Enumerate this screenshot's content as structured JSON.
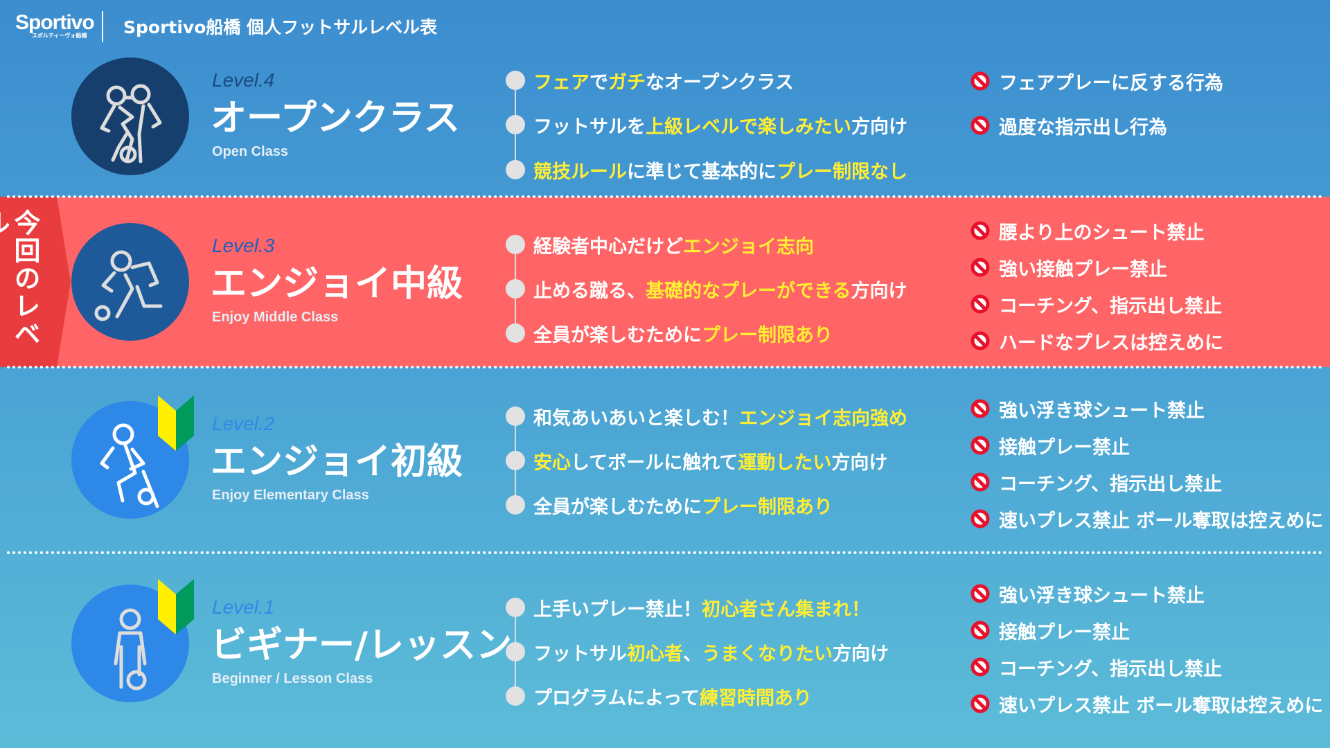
{
  "header": {
    "logo_text": "Sportivo",
    "logo_sub": "スポルティーヴォ船橋",
    "title": "Sportivo船橋 個人フットサルレベル表"
  },
  "current_tab": "今回のレベル",
  "colors": {
    "highlight": "#ffee33",
    "current_band": "#ff6566",
    "tab": "#e93c3e",
    "prohibit": "#e8102a"
  },
  "levels": [
    {
      "level": "Level.4",
      "name": "オープンクラス",
      "sub": "Open Class",
      "icon": "two-players-icon",
      "circle": "#163f6e",
      "label_color": "#1b4a82",
      "beginner_mark": false,
      "bullets": [
        [
          {
            "t": "フェア",
            "h": 1
          },
          {
            "t": "で"
          },
          {
            "t": "ガチ",
            "h": 1
          },
          {
            "t": "なオープンクラス"
          }
        ],
        [
          {
            "t": "フットサルを"
          },
          {
            "t": "上級レベルで楽しみたい",
            "h": 1
          },
          {
            "t": "方向け"
          }
        ],
        [
          {
            "t": "競技ルール",
            "h": 1
          },
          {
            "t": "に準じて基本的に"
          },
          {
            "t": "プレー制限なし",
            "h": 1
          }
        ]
      ],
      "rules": [
        "フェアプレーに反する行為",
        "過度な指示出し行為"
      ]
    },
    {
      "level": "Level.3",
      "name": "エンジョイ中級",
      "sub": "Enjoy Middle Class",
      "icon": "kicking-player-icon",
      "circle": "#1e5a9a",
      "label_color": "#1e5fc0",
      "beginner_mark": false,
      "current": true,
      "bullets": [
        [
          {
            "t": "経験者中心だけど"
          },
          {
            "t": "エンジョイ志向",
            "h": 1
          }
        ],
        [
          {
            "t": "止める蹴る、"
          },
          {
            "t": "基礎的なプレーができる",
            "h": 1
          },
          {
            "t": "方向け"
          }
        ],
        [
          {
            "t": "全員が楽しむために"
          },
          {
            "t": "プレー制限あり",
            "h": 1
          }
        ]
      ],
      "rules": [
        "腰より上のシュート禁止",
        "強い接触プレー禁止",
        "コーチング、指示出し禁止",
        "ハードなプレスは控えめに"
      ]
    },
    {
      "level": "Level.2",
      "name": "エンジョイ初級",
      "sub": "Enjoy Elementary Class",
      "icon": "dribbling-player-icon",
      "circle": "#2e88e8",
      "label_color": "#2f8ae6",
      "beginner_mark": true,
      "bullets": [
        [
          {
            "t": "和気あいあいと楽しむ！"
          },
          {
            "t": "エンジョイ志向強め",
            "h": 1
          }
        ],
        [
          {
            "t": "安心",
            "h": 1
          },
          {
            "t": "してボールに触れて"
          },
          {
            "t": "運動したい",
            "h": 1
          },
          {
            "t": "方向け"
          }
        ],
        [
          {
            "t": "全員が楽しむために"
          },
          {
            "t": "プレー制限あり",
            "h": 1
          }
        ]
      ],
      "rules": [
        "強い浮き球シュート禁止",
        "接触プレー禁止",
        "コーチング、指示出し禁止",
        "速いプレス禁止 ボール奪取は控えめに"
      ]
    },
    {
      "level": "Level.1",
      "name": "ビギナー/レッスン",
      "sub": "Beginner / Lesson Class",
      "icon": "standing-player-icon",
      "circle": "#2e88e8",
      "label_color": "#2f8ae6",
      "beginner_mark": true,
      "bullets": [
        [
          {
            "t": "上手いプレー禁止！"
          },
          {
            "t": "初心者さん集まれ！",
            "h": 1
          }
        ],
        [
          {
            "t": "フットサル"
          },
          {
            "t": "初心者",
            "h": 1
          },
          {
            "t": "、"
          },
          {
            "t": "うまくなりたい",
            "h": 1
          },
          {
            "t": "方向け"
          }
        ],
        [
          {
            "t": "プログラムによって"
          },
          {
            "t": "練習時間あり",
            "h": 1
          }
        ]
      ],
      "rules": [
        "強い浮き球シュート禁止",
        "接触プレー禁止",
        "コーチング、指示出し禁止",
        "速いプレス禁止 ボール奪取は控えめに"
      ]
    }
  ]
}
